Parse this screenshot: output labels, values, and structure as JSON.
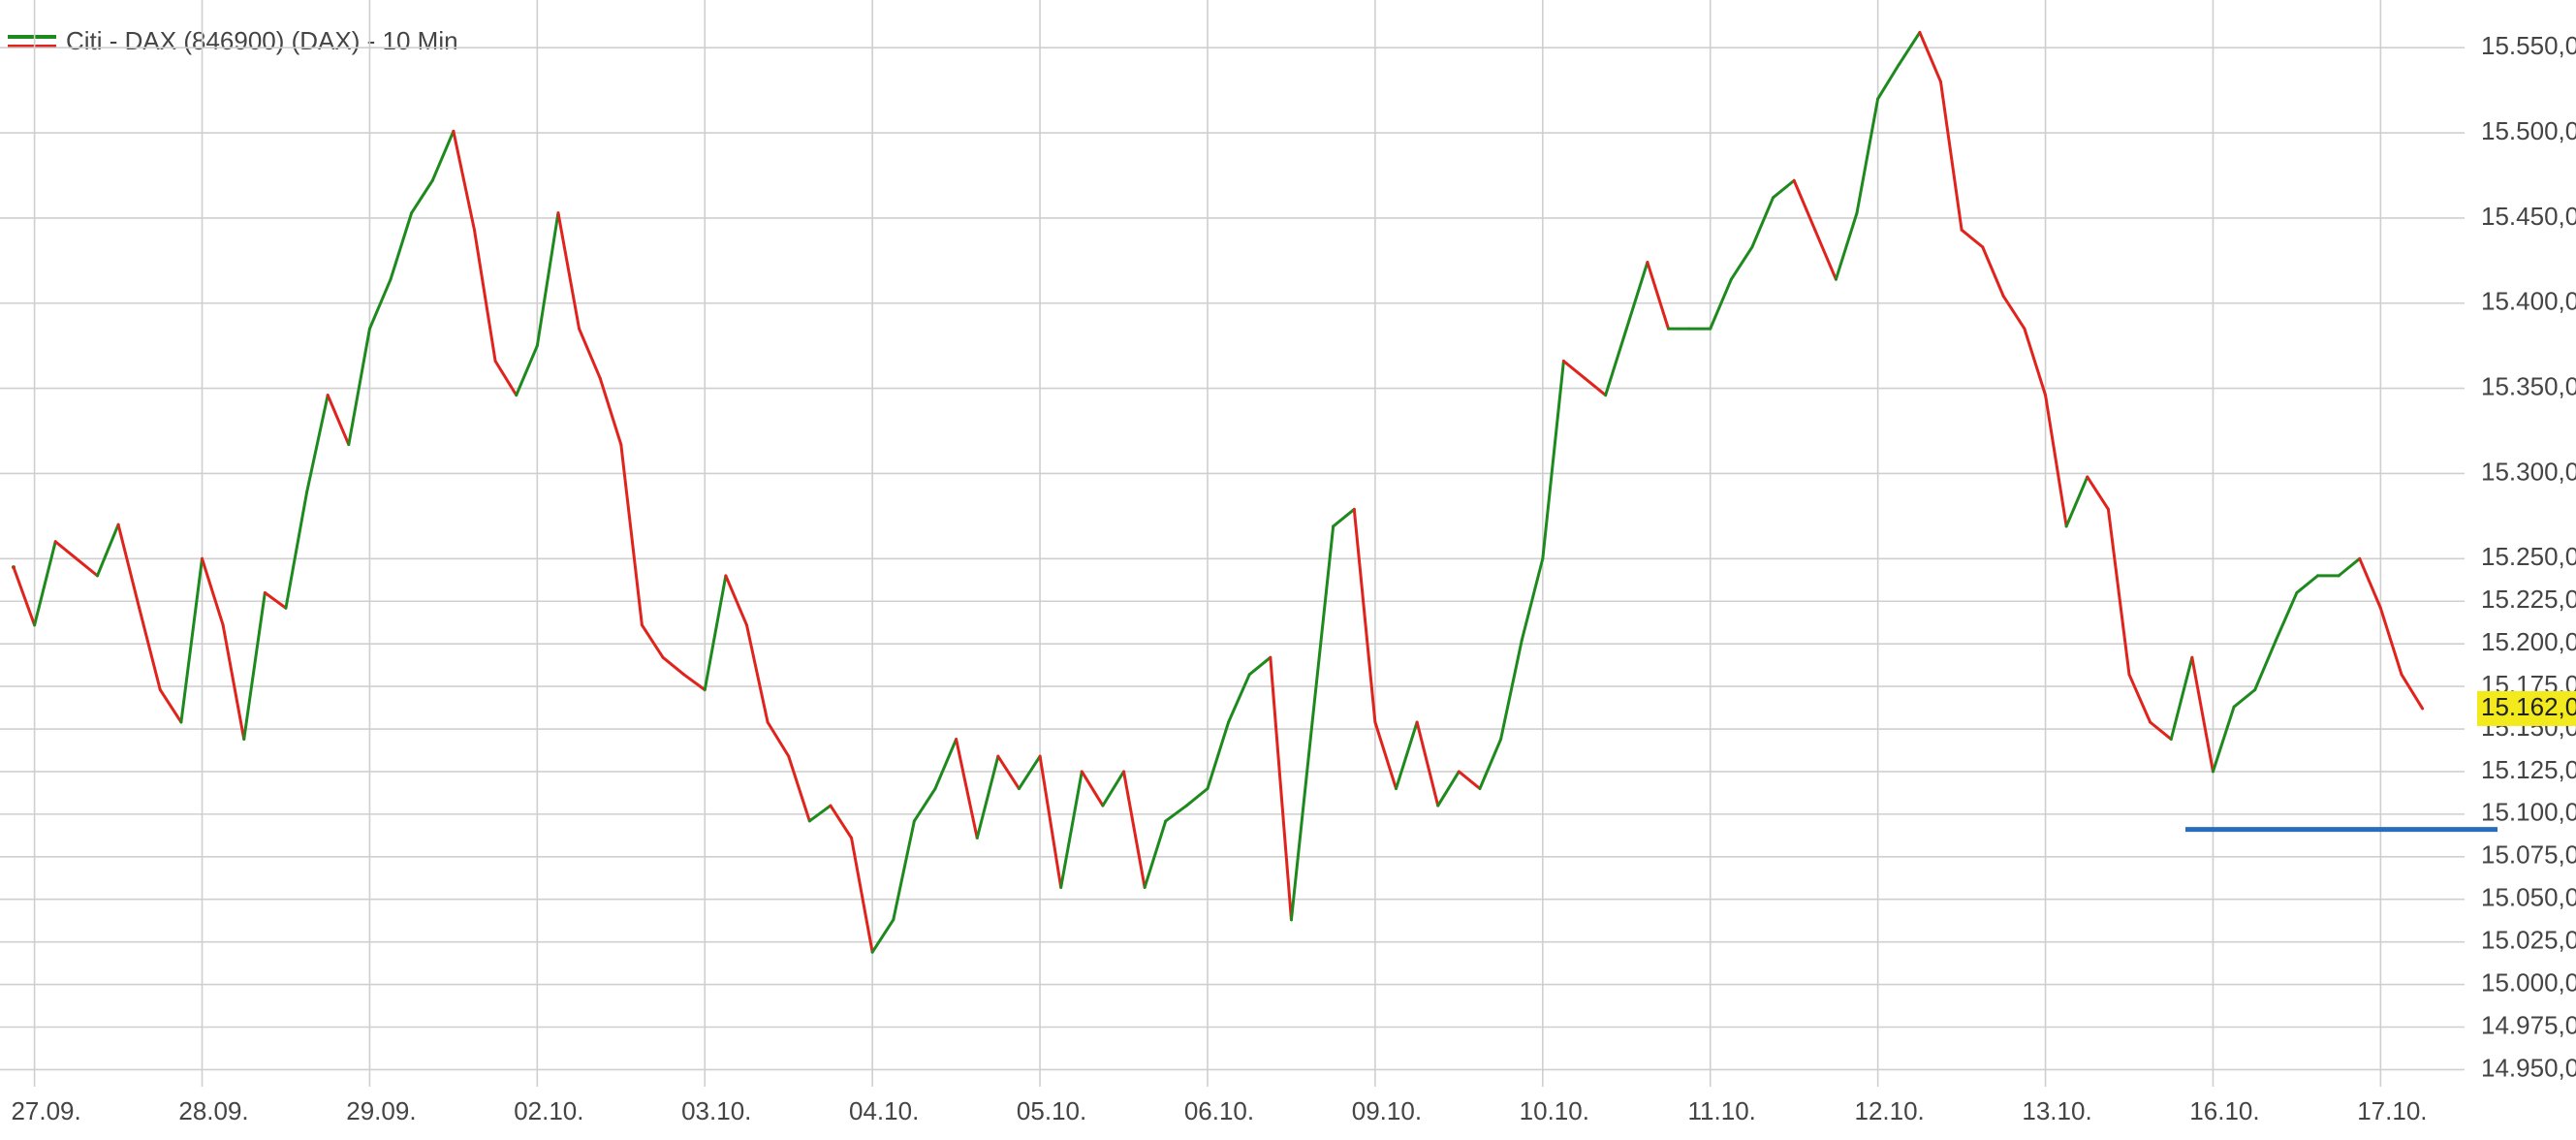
{
  "chart_data": {
    "type": "line",
    "title": "Citi - DAX (846900) (DAX) - 10 Min",
    "up_color": "#1e8a1e",
    "down_color": "#e0231c",
    "grid": true,
    "categories": [
      null,
      "27.09.",
      null,
      null,
      null,
      null,
      null,
      null,
      null,
      "28.09.",
      null,
      null,
      null,
      null,
      null,
      null,
      null,
      "29.09.",
      null,
      null,
      null,
      null,
      null,
      null,
      null,
      "02.10.",
      null,
      null,
      null,
      null,
      null,
      null,
      null,
      "03.10.",
      null,
      null,
      null,
      null,
      null,
      null,
      null,
      "04.10.",
      null,
      null,
      null,
      null,
      null,
      null,
      null,
      "05.10.",
      null,
      null,
      null,
      null,
      null,
      null,
      null,
      "06.10.",
      null,
      null,
      null,
      null,
      null,
      null,
      null,
      "09.10.",
      null,
      null,
      null,
      null,
      null,
      null,
      null,
      "10.10.",
      null,
      null,
      null,
      null,
      null,
      null,
      null,
      "11.10.",
      null,
      null,
      null,
      null,
      null,
      null,
      null,
      "12.10.",
      null,
      null,
      null,
      null,
      null,
      null,
      null,
      "13.10.",
      null,
      null,
      null,
      null,
      null,
      null,
      null,
      "16.10.",
      null,
      null,
      null,
      null,
      null,
      null,
      null,
      "17.10.",
      null,
      null
    ],
    "series": [
      {
        "name": "Citi - DAX (846900) (DAX) - 10 Min",
        "values": [
          15245,
          15211,
          15260,
          15250,
          15240,
          15270,
          15221,
          15173,
          15154,
          15250,
          15211,
          15144,
          15230,
          15221,
          15289,
          15346,
          15317,
          15385,
          15414,
          15453,
          15472,
          15501,
          15443,
          15366,
          15346,
          15375,
          15453,
          15385,
          15356,
          15317,
          15211,
          15192,
          15182,
          15173,
          15240,
          15211,
          15154,
          15134,
          15096,
          15105,
          15086,
          15019,
          15038,
          15096,
          15115,
          15144,
          15086,
          15134,
          15115,
          15134,
          15057,
          15125,
          15105,
          15125,
          15057,
          15096,
          15105,
          15115,
          15154,
          15182,
          15192,
          15038,
          15154,
          15269,
          15279,
          15154,
          15115,
          15154,
          15105,
          15125,
          15115,
          15144,
          15202,
          15250,
          15366,
          15356,
          15346,
          15385,
          15424,
          15385,
          15385,
          15385,
          15414,
          15433,
          15462,
          15472,
          15443,
          15414,
          15453,
          15520,
          15540,
          15559,
          15530,
          15443,
          15433,
          15404,
          15385,
          15346,
          15269,
          15298,
          15279,
          15182,
          15154,
          15144,
          15192,
          15125,
          15163,
          15173,
          15202,
          15230,
          15240,
          15240,
          15250,
          15221,
          15182,
          15162
        ]
      }
    ],
    "ylim": [
      14940,
      15578
    ],
    "yticks": [
      {
        "value": 14950,
        "label": "14.950,0"
      },
      {
        "value": 14975,
        "label": "14.975,0"
      },
      {
        "value": 15000,
        "label": "15.000,0"
      },
      {
        "value": 15025,
        "label": "15.025,0"
      },
      {
        "value": 15050,
        "label": "15.050,0"
      },
      {
        "value": 15075,
        "label": "15.075,0"
      },
      {
        "value": 15100,
        "label": "15.100,0"
      },
      {
        "value": 15125,
        "label": "15.125,0"
      },
      {
        "value": 15150,
        "label": "15.150,0"
      },
      {
        "value": 15175,
        "label": "15.175,0"
      },
      {
        "value": 15200,
        "label": "15.200,0"
      },
      {
        "value": 15225,
        "label": "15.225,0"
      },
      {
        "value": 15250,
        "label": "15.250,0"
      },
      {
        "value": 15300,
        "label": "15.300,0"
      },
      {
        "value": 15350,
        "label": "15.350,0"
      },
      {
        "value": 15400,
        "label": "15.400,0"
      },
      {
        "value": 15450,
        "label": "15.450,0"
      },
      {
        "value": 15500,
        "label": "15.500,0"
      },
      {
        "value": 15550,
        "label": "15.550,0"
      }
    ],
    "last_price": {
      "value": 15162,
      "label": "15.162,0",
      "color": "#f2ea1c"
    },
    "support_line": {
      "value": 15091,
      "color": "#2a6ebb"
    }
  }
}
